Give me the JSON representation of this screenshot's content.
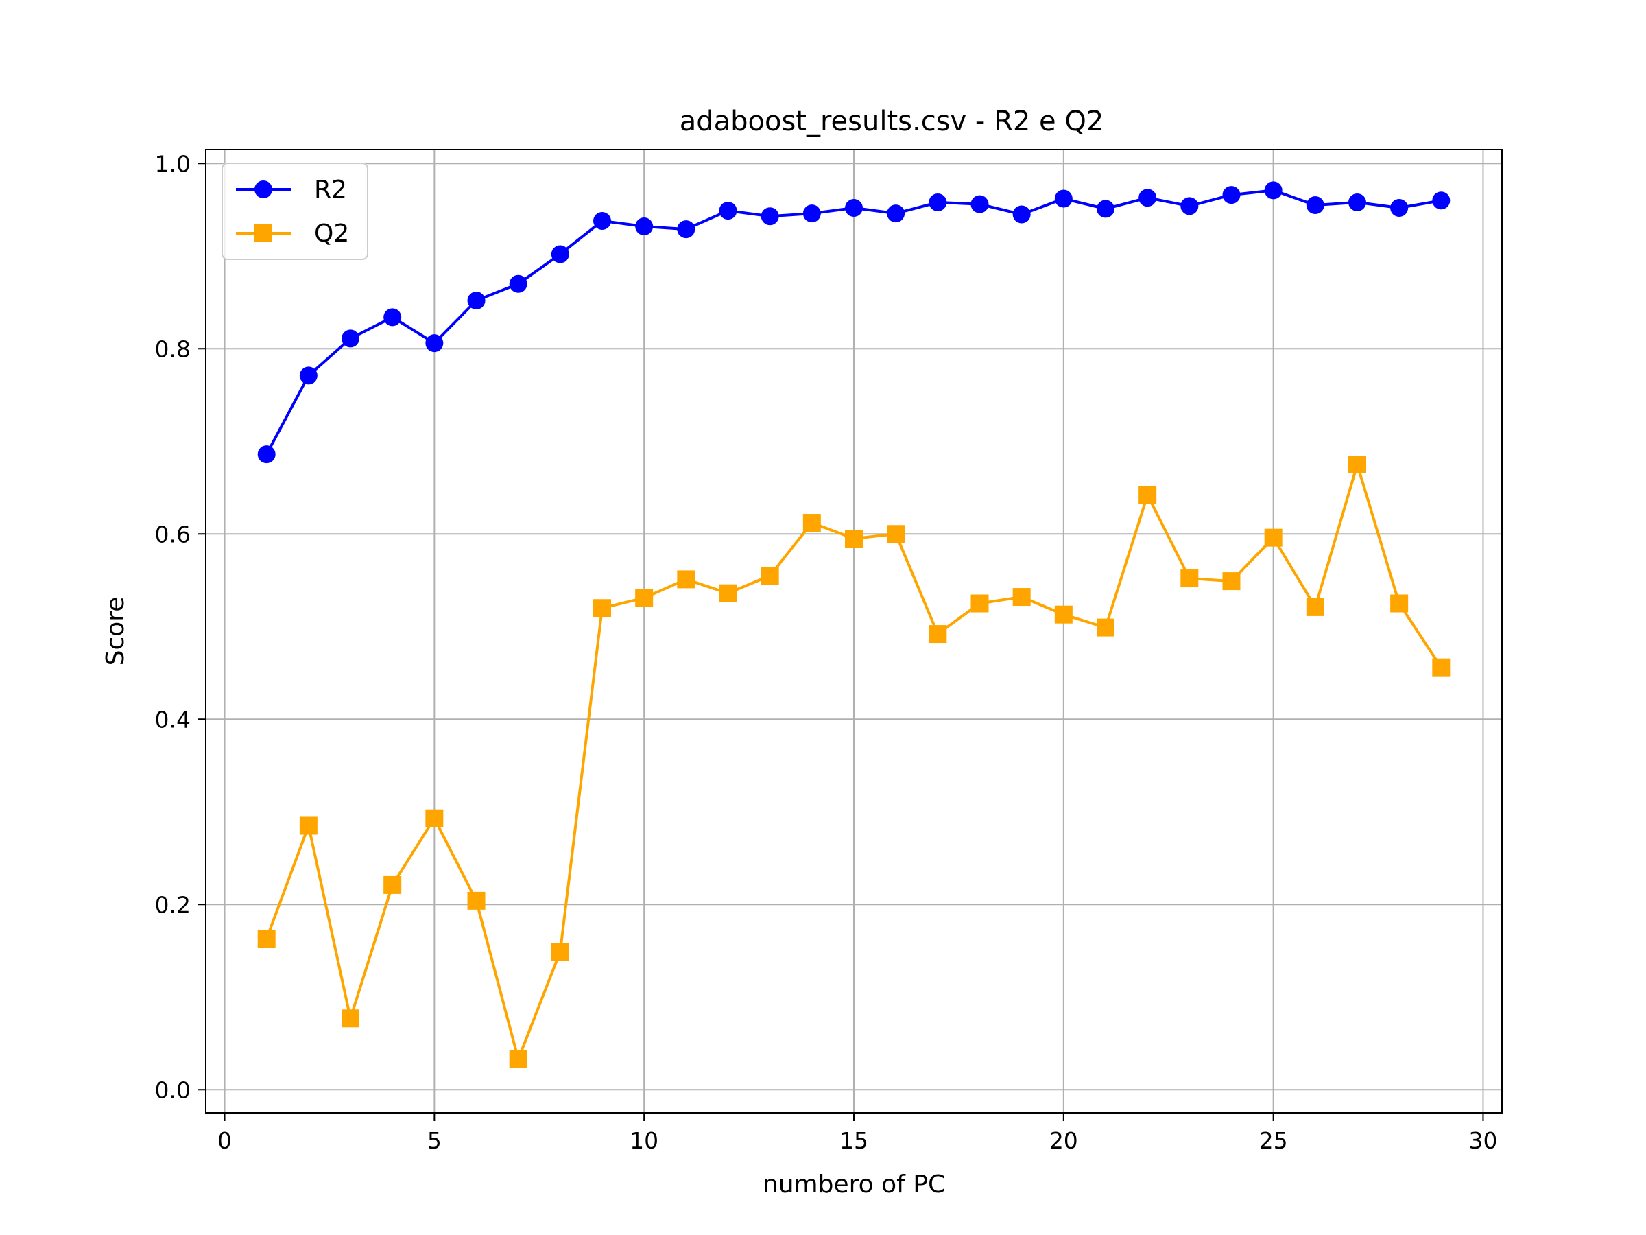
{
  "chart_data": {
    "type": "line",
    "title": "adaboost_results.csv - R2 e Q2",
    "xlabel": "numbero of PC",
    "ylabel": "Score",
    "xlim": [
      -0.45,
      30.45
    ],
    "ylim": [
      -0.025,
      1.015
    ],
    "x_ticks": [
      0,
      5,
      10,
      15,
      20,
      25,
      30
    ],
    "y_ticks": [
      0.0,
      0.2,
      0.4,
      0.6,
      0.8,
      1.0
    ],
    "x_tick_labels": [
      "0",
      "5",
      "10",
      "15",
      "20",
      "25",
      "30"
    ],
    "y_tick_labels": [
      "0.0",
      "0.2",
      "0.4",
      "0.6",
      "0.8",
      "1.0"
    ],
    "grid": true,
    "legend_position": "top-left",
    "x": [
      1,
      2,
      3,
      4,
      5,
      6,
      7,
      8,
      9,
      10,
      11,
      12,
      13,
      14,
      15,
      16,
      17,
      18,
      19,
      20,
      21,
      22,
      23,
      24,
      25,
      26,
      27,
      28,
      29
    ],
    "series": [
      {
        "name": "R2",
        "color": "#0000ff",
        "marker": "circle",
        "values": [
          0.686,
          0.771,
          0.811,
          0.834,
          0.806,
          0.852,
          0.87,
          0.902,
          0.938,
          0.932,
          0.929,
          0.949,
          0.943,
          0.946,
          0.952,
          0.946,
          0.958,
          0.956,
          0.945,
          0.962,
          0.951,
          0.963,
          0.954,
          0.966,
          0.971,
          0.955,
          0.958,
          0.952,
          0.96
        ]
      },
      {
        "name": "Q2",
        "color": "#ffa500",
        "marker": "square",
        "values": [
          0.163,
          0.285,
          0.077,
          0.221,
          0.293,
          0.204,
          0.033,
          0.149,
          0.52,
          0.531,
          0.551,
          0.536,
          0.555,
          0.612,
          0.595,
          0.6,
          0.492,
          0.525,
          0.532,
          0.513,
          0.499,
          0.642,
          0.552,
          0.549,
          0.596,
          0.521,
          0.675,
          0.525,
          0.456
        ]
      }
    ]
  }
}
